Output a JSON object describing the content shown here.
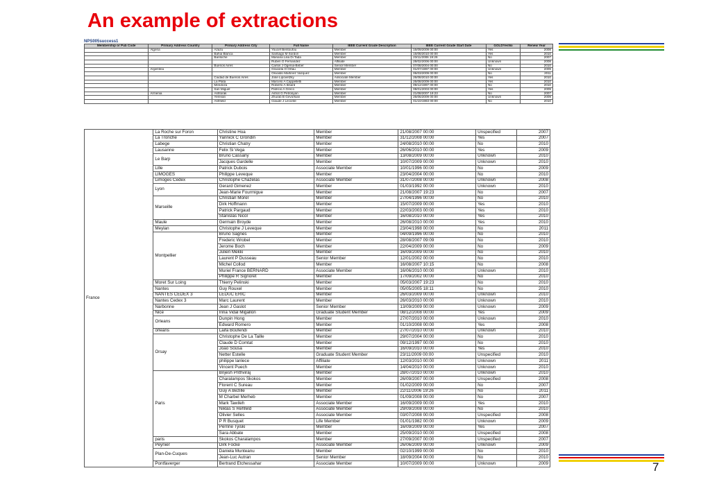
{
  "title": "An example of extractions",
  "table1": {
    "name": "NPS005success1",
    "headers": [
      "Membership or Pub Code",
      "Primary Address Country",
      "Primary Address City",
      "Full Name",
      "IEEE Current Grade Description",
      "IEEE Current Grade Start Date",
      "GOLDYesNo",
      "Renew Year"
    ],
    "rows": [
      [
        "",
        "Algeria",
        "Azazu",
        "Youcef Bentoufou",
        "Member",
        "16/09/2009 00:00",
        "Yes",
        "2008"
      ],
      [
        "",
        "",
        "Bahia Blanca",
        "Santiago M Sordon",
        "Member",
        "16/08/2010 00:00",
        "Yes",
        "2010"
      ],
      [
        "",
        "",
        "Bariloche",
        "Mariana Lilia Di Tada",
        "Member",
        "23/11/2006 19:26",
        "No",
        "2007"
      ],
      [
        "",
        "",
        "",
        "Ruben O Fernandez",
        "Affiliate",
        "28/02/2006 00:00",
        "Unknown",
        "2008"
      ],
      [
        "",
        "",
        "Buenos Aires",
        "Carlos J Ogenia-Beber",
        "Senior Member",
        "07/08/2004 00:00",
        "No",
        "2010"
      ],
      [
        "",
        "Argentina",
        "",
        "Graciela O Ortau",
        "Member",
        "01/07/1997 00:00",
        "Unknown",
        "2009"
      ],
      [
        "",
        "",
        "",
        "Osvaldo Martinez Vazquez",
        "Member",
        "06/03/2009 00:00",
        "No",
        "2011"
      ],
      [
        "",
        "",
        "Ciudad de Buenos Aires",
        "Jose Lipovetzky",
        "Associate Member",
        "26/08/2010 00:00",
        "Yes",
        "2010"
      ],
      [
        "",
        "",
        "La Plata",
        "Marcelo A Cappelletti",
        "Member",
        "26/08/2009 00:00",
        "Yes",
        "2010"
      ],
      [
        "",
        "",
        "Mendoza",
        "Roberto A Ibsard",
        "Member",
        "09/12/1997 00:00",
        "No",
        "2010"
      ],
      [
        "",
        "",
        "San Miguel",
        "Patricio A Greco",
        "Member",
        "08/01/2003 00:00",
        "Yes",
        "2009"
      ],
      [
        "",
        "Armenia",
        "Ashtorak",
        "Ashot G Petrosyan",
        "Member",
        "21/08/2007 19:23",
        "No",
        "2007"
      ],
      [
        "",
        "",
        "Yerevan",
        "Zhurab B Gevorkian",
        "Member",
        "26/06/2009 00:00",
        "Unknown",
        "2009"
      ],
      [
        "",
        "",
        "Ashfield",
        "Claude J Leconte",
        "Member",
        "01/10/1983 00:00",
        "No",
        "2010"
      ]
    ]
  },
  "table2": {
    "country": "France",
    "groups": [
      {
        "city": "La Roche sur Foron",
        "rows": [
          [
            "Christine Hoa",
            "Member",
            "21/08/2007 00:00",
            "Unspecified",
            "2007"
          ]
        ]
      },
      {
        "city": "La Tronche",
        "rows": [
          [
            "Yannick C Grondin",
            "Member",
            "31/12/2008 00:00",
            "Yes",
            "2007"
          ]
        ]
      },
      {
        "city": "Labege",
        "rows": [
          [
            "Christian Chatry",
            "Member",
            "24/08/2010 00:00",
            "No",
            "2010"
          ]
        ]
      },
      {
        "city": "Lausanne",
        "rows": [
          [
            "Felix Si Vega",
            "Member",
            "26/06/2010 00:00",
            "Yes",
            "2009"
          ]
        ]
      },
      {
        "city": "Le Barp",
        "rows": [
          [
            "Bruno Cassany",
            "Member",
            "13/08/2009 00:00",
            "Unknown",
            "2010"
          ],
          [
            "Jacques Gardelle",
            "Member",
            "10/07/2009 00:00",
            "Unknown",
            "2010"
          ]
        ]
      },
      {
        "city": "Lille",
        "rows": [
          [
            "Patrick Dubois",
            "Associate Member",
            "10/01/1996 00:00",
            "No",
            "2009"
          ]
        ]
      },
      {
        "city": "LIMOGES",
        "rows": [
          [
            "Philippe Leveque",
            "Member",
            "23/04/2004 00:00",
            "No",
            "2010"
          ]
        ]
      },
      {
        "city": "Limoges Cedex",
        "rows": [
          [
            "Christophe Chazelas",
            "Associate Member",
            "31/07/2008 00:00",
            "Unknown",
            "2008"
          ]
        ]
      },
      {
        "city": "Lyon",
        "rows": [
          [
            "Gerard Gimenez",
            "Member",
            "01/03/1992 00:00",
            "Unknown",
            "2010"
          ],
          [
            "Jean-Marie Fourmigue",
            "Member",
            "21/08/2007 19:23",
            "No",
            "2007"
          ]
        ]
      },
      {
        "city": "Marseille",
        "rows": [
          [
            "Christian Morel",
            "Member",
            "27/04/1996 00:00",
            "No",
            "2010"
          ],
          [
            "Dirk Hoffmann",
            "Member",
            "15/07/2009 00:00",
            "Yes",
            "2010"
          ],
          [
            "Patrick Pargaud",
            "Member",
            "22/03/2003 00:00",
            "Yes",
            "2010"
          ],
          [
            "Stanislas Nicol",
            "Member",
            "16/08/2010 00:00",
            "Yes",
            "2010"
          ]
        ]
      },
      {
        "city": "Maule",
        "rows": [
          [
            "Germain Broyde",
            "Member",
            "26/08/2010 00:00",
            "Yes",
            "2010"
          ]
        ]
      },
      {
        "city": "Meylan",
        "rows": [
          [
            "Christophe J Leveque",
            "Member",
            "23/04/1998 00:00",
            "No",
            "2011"
          ]
        ]
      },
      {
        "city": "Montpellier",
        "rows": [
          [
            "Bruno Sagnes",
            "Member",
            "04/09/1996 00:00",
            "No",
            "2010"
          ],
          [
            "Frederic Wrobel",
            "Member",
            "28/08/2007 09:09",
            "No",
            "2010"
          ],
          [
            "Jerome Boch",
            "Member",
            "22/04/2009 00:00",
            "No",
            "2009"
          ],
          [
            "Julien Mekki",
            "Member",
            "16/09/2009 00:00",
            "No",
            "2010"
          ],
          [
            "Laurent P Dusseau",
            "Senior Member",
            "12/01/2002 00:00",
            "No",
            "2010"
          ],
          [
            "Michel Collod",
            "Member",
            "16/08/2007 10:15",
            "No",
            "2008"
          ],
          [
            "Muriel France BERNARD",
            "Associate Member",
            "16/06/2010 00:00",
            "Unknown",
            "2010"
          ],
          [
            "Philippe R Signoret",
            "Member",
            "17/09/2002 00:00",
            "No",
            "2010"
          ]
        ]
      },
      {
        "city": "Moret Sur Loing",
        "rows": [
          [
            "Thierry Pelinski",
            "Member",
            "05/03/2007 19:23",
            "No",
            "2010"
          ]
        ]
      },
      {
        "city": "Nantes",
        "rows": [
          [
            "Guy Rouxel",
            "Member",
            "05/05/2005 18:11",
            "No",
            "2010"
          ]
        ]
      },
      {
        "city": "NANTES CEDEX 3",
        "rows": [
          [
            "LEDUC ERIC",
            "Member",
            "26/03/2009 00:00",
            "Unknown",
            "2010"
          ]
        ]
      },
      {
        "city": "Nantes Cedex 3",
        "rows": [
          [
            "Marc Laurent",
            "Member",
            "26/03/2010 00:00",
            "Unknown",
            "2010"
          ]
        ]
      },
      {
        "city": "Narbonne",
        "rows": [
          [
            "Jean J Gaslot",
            "Senior Member",
            "13/09/2009 00:00",
            "Unknown",
            "2009"
          ]
        ]
      },
      {
        "city": "Nice",
        "rows": [
          [
            "Irina Vidal Migallon",
            "Graduate Student Member",
            "08/12/2008 00:00",
            "Yes",
            "2009"
          ]
        ]
      },
      {
        "city": "Orleans",
        "rows": [
          [
            "Dunpin Hong",
            "Member",
            "27/07/2010 00:00",
            "Unknown",
            "2010"
          ],
          [
            "Edward Romero",
            "Member",
            "01/10/2008 00:00",
            "Yes",
            "2008"
          ]
        ]
      },
      {
        "city": "orleans",
        "rows": [
          [
            "Laifa Boufendi",
            "Member",
            "27/07/2010 00:00",
            "Unknown",
            "2010"
          ]
        ]
      },
      {
        "city": "Orsay",
        "rows": [
          [
            "Christophe De La Taille",
            "Member",
            "29/07/2004 00:00",
            "No",
            "2010"
          ],
          [
            "Claude D Comtat",
            "Member",
            "09/12/1997 00:00",
            "No",
            "2010"
          ],
          [
            "Joao Sousa",
            "Member",
            "16/09/2010 00:00",
            "Yes",
            "2010"
          ],
          [
            "Netter Estelle",
            "Graduate Student Member",
            "23/11/2009 00:00",
            "Unspecified",
            "2010"
          ],
          [
            "philippe lanlece",
            "Affiliate",
            "12/03/2010 00:00",
            "Unknown",
            "2011"
          ],
          [
            "Vincent Puech",
            "Member",
            "14/04/2010 00:00",
            "Unknown",
            "2010"
          ]
        ]
      },
      {
        "city": "Paris",
        "rows": [
          [
            "Brijesh Prithviraj",
            "Member",
            "28/07/2010 00:00",
            "Unknown",
            "2010"
          ],
          [
            "Charalampos Skokos",
            "Member",
            "26/09/2007 00:00",
            "Unspecified",
            "2008"
          ],
          [
            "Florent C Sureau",
            "Member",
            "01/02/2009 00:00",
            "No",
            "2007"
          ],
          [
            "Guy A Bezille",
            "Member",
            "22/11/2006 19:26",
            "No",
            "2011"
          ],
          [
            "M Charbel Merheb",
            "Member",
            "01/09/2008 00:00",
            "No",
            "2007"
          ],
          [
            "Mark Tawileh",
            "Associate Member",
            "16/09/2009 00:00",
            "Yes",
            "2010"
          ],
          [
            "Niklas S Rehfeld",
            "Associate Member",
            "29/09/2008 00:00",
            "No",
            "2010"
          ],
          [
            "Olivier Selles",
            "Associate Member",
            "03/07/2008 00:00",
            "Unspecified",
            "2008"
          ],
          [
            "P R Busquet",
            "Life Member",
            "01/01/1982 00:00",
            "Unknown",
            "2009"
          ],
          [
            "Perrine Tyiski",
            "Member",
            "16/09/2009 00:00",
            "Yes",
            "2007"
          ],
          [
            "Sara Abbate",
            "Member",
            "25/09/2010 00:00",
            "Unspecified",
            "2008"
          ]
        ]
      },
      {
        "city": "paris",
        "rows": [
          [
            "Skokos Charalampos",
            "Member",
            "27/09/2007 00:00",
            "Unspecified",
            "2007"
          ]
        ]
      },
      {
        "city": "Peynier",
        "rows": [
          [
            "Dirk Focke",
            "Associate Member",
            "26/06/2009 00:00",
            "Unknown",
            "2009"
          ]
        ]
      },
      {
        "city": "Plan-De-Cuques",
        "rows": [
          [
            "Daniela Munteanu",
            "Member",
            "02/10/1999 00:00",
            "No",
            "2010"
          ],
          [
            "Jean-Luc Autran",
            "Senior Member",
            "18/09/2004 00:00",
            "No",
            "2010"
          ]
        ]
      },
      {
        "city": "Pontfaverger",
        "rows": [
          [
            "Bertrand Etchessahar",
            "Associate Member",
            "10/07/2009 00:00",
            "Unknown",
            "2009"
          ]
        ]
      }
    ]
  },
  "page_number": "7",
  "colors": {
    "title": "#e8000b",
    "deco_blue": "#1f3fa0",
    "deco_yellow": "#f0d000",
    "deco_green": "#1e8a30",
    "deco_red": "#e00000"
  }
}
